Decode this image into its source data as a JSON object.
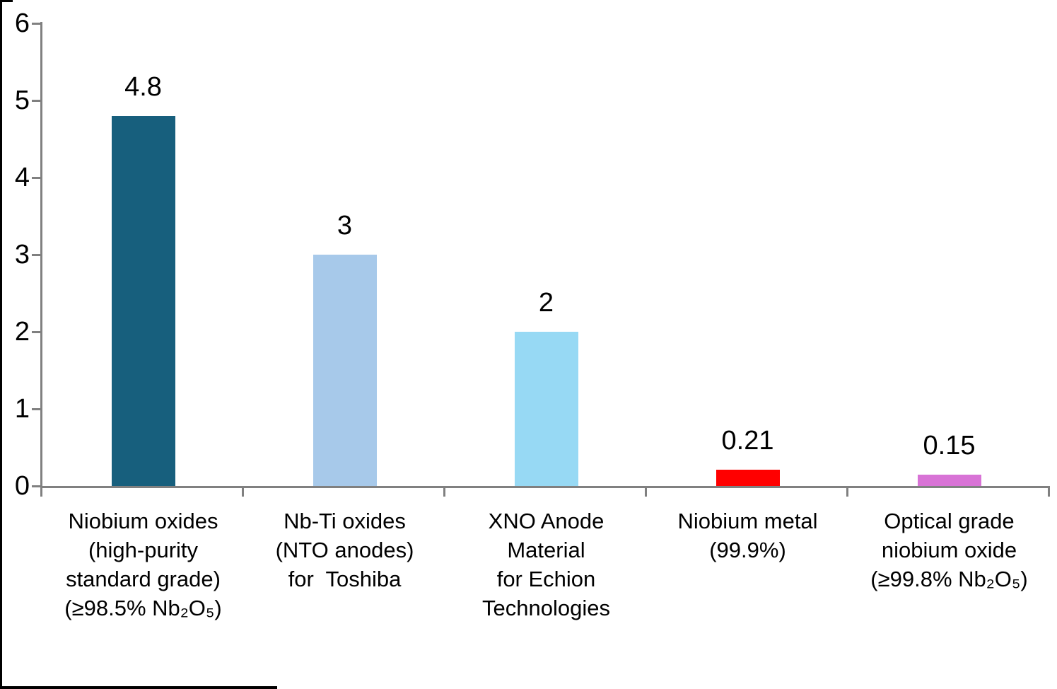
{
  "chart_data": {
    "type": "bar",
    "title": "",
    "categories": [
      "Niobium oxides\n(high-purity\nstandard grade)\n(≥98.5% Nb₂O₅)",
      "Nb-Ti oxides\n(NTO anodes)\nfor  Toshiba",
      "XNO Anode\nMaterial\nfor Echion\nTechnologies",
      "Niobium metal\n(99.9%)",
      "Optical grade\nniobium oxide\n(≥99.8% Nb₂O₅)"
    ],
    "values": [
      4.8,
      3,
      2,
      0.21,
      0.15
    ],
    "data_labels": [
      "4.8",
      "3",
      "2",
      "0.21",
      "0.15"
    ],
    "bar_colors": [
      "#175F7D",
      "#A7C9EA",
      "#97D9F4",
      "#FF0000",
      "#D873D6"
    ],
    "y_ticks": [
      0,
      1,
      2,
      3,
      4,
      5,
      6
    ],
    "ylim": [
      0,
      6
    ],
    "xlabel": "",
    "ylabel": "",
    "grid": false,
    "legend": false,
    "axis_color": "#808080",
    "text_color": "#000000",
    "background_color": "#ffffff"
  }
}
